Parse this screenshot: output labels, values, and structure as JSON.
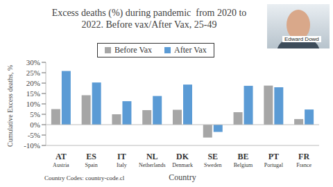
{
  "chart_data": {
    "type": "bar",
    "title": "Excess deaths (%) during pandemic  from 2020 to 2022. Before vax/After Vax, 25-49",
    "x_label": "Country",
    "y_label": "Cumulative Excess deaths, %",
    "categories": [
      "AT\nAustria",
      "ES\nSpain",
      "IT\nItaly",
      "NL\nNetherlands",
      "DK\nDenmark",
      "SE\nSweden",
      "BE\nBelgium",
      "PT\nPortugal",
      "FR\nFrance"
    ],
    "series": [
      {
        "name": "Before Vax",
        "color": "#a6a6a6",
        "values": [
          7.5,
          14.2,
          5,
          7,
          7.2,
          -6.2,
          6,
          18.8,
          2.7
        ]
      },
      {
        "name": "After Vax",
        "color": "#5b9bd5",
        "values": [
          25.8,
          20.3,
          11.3,
          13.8,
          19.3,
          -3.5,
          18.7,
          18,
          7.3
        ]
      }
    ],
    "ylim": [
      -10,
      30
    ],
    "yticks": [
      {
        "value": -10,
        "label": "-10%"
      },
      {
        "value": -5,
        "label": "-5%"
      },
      {
        "value": 0,
        "label": "0%"
      },
      {
        "value": 5,
        "label": "5%"
      },
      {
        "value": 10,
        "label": "10%"
      },
      {
        "value": 15,
        "label": "15%"
      },
      {
        "value": 20,
        "label": "20%"
      },
      {
        "value": 25,
        "label": "25%"
      },
      {
        "value": 30,
        "label": "30%"
      }
    ],
    "grid": false,
    "legend": "top",
    "annotations": [
      "Country Codes: country-code.cl",
      "Edward Dowd"
    ]
  }
}
